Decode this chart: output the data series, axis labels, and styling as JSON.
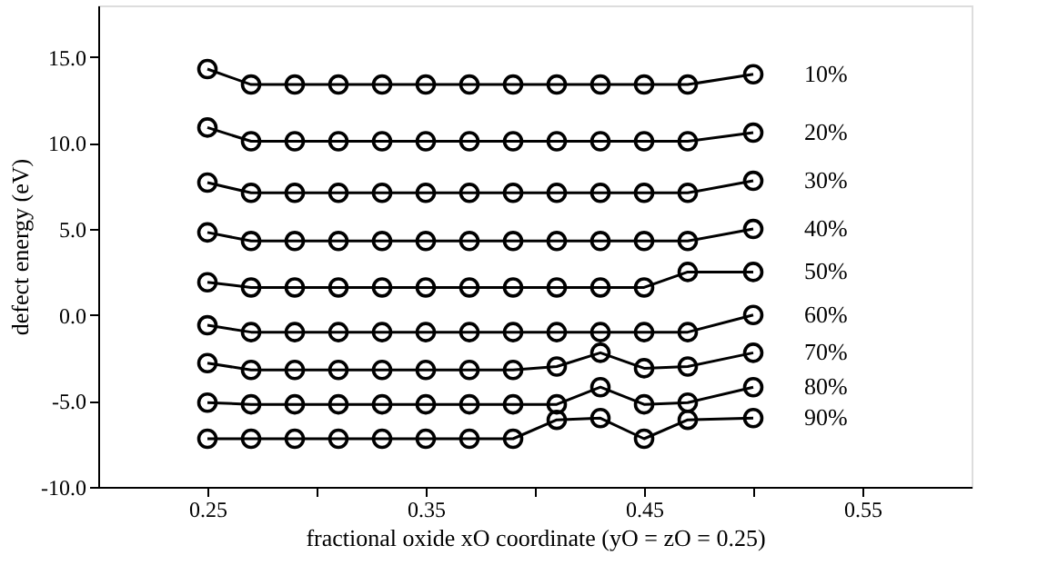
{
  "chart_data": {
    "type": "line",
    "xlabel": "fractional oxide xO coordinate (yO = zO = 0.25)",
    "ylabel": "defect energy (eV)",
    "x": [
      0.25,
      0.27,
      0.29,
      0.31,
      0.33,
      0.35,
      0.37,
      0.39,
      0.41,
      0.43,
      0.45,
      0.47,
      0.5
    ],
    "xlim": [
      0.2,
      0.6
    ],
    "ylim": [
      -10,
      18
    ],
    "xticks": [
      0.25,
      {
        "value": 0.3,
        "label": null
      },
      0.35,
      {
        "value": 0.4,
        "label": null
      },
      0.45,
      {
        "value": 0.5,
        "label": null
      },
      0.55
    ],
    "yticks": [
      {
        "value": -10,
        "label": "-10.0"
      },
      {
        "value": -5,
        "label": "-5.0"
      },
      {
        "value": 0,
        "label": "0.0"
      },
      {
        "value": 5,
        "label": "5.0"
      },
      {
        "value": 10,
        "label": "10.0"
      },
      {
        "value": 15,
        "label": "15.0"
      }
    ],
    "grid": false,
    "marker": "circle",
    "line_style": "solid",
    "legend": false,
    "series": [
      {
        "name": "10%",
        "color": "#000000",
        "values": [
          14.3,
          13.4,
          13.4,
          13.4,
          13.4,
          13.4,
          13.4,
          13.4,
          13.4,
          13.4,
          13.4,
          13.4,
          14.0
        ]
      },
      {
        "name": "20%",
        "color": "#000000",
        "values": [
          10.9,
          10.1,
          10.1,
          10.1,
          10.1,
          10.1,
          10.1,
          10.1,
          10.1,
          10.1,
          10.1,
          10.1,
          10.6
        ]
      },
      {
        "name": "30%",
        "color": "#000000",
        "values": [
          7.7,
          7.1,
          7.1,
          7.1,
          7.1,
          7.1,
          7.1,
          7.1,
          7.1,
          7.1,
          7.1,
          7.1,
          7.8
        ]
      },
      {
        "name": "40%",
        "color": "#000000",
        "values": [
          4.8,
          4.3,
          4.3,
          4.3,
          4.3,
          4.3,
          4.3,
          4.3,
          4.3,
          4.3,
          4.3,
          4.3,
          5.0
        ]
      },
      {
        "name": "50%",
        "color": "#000000",
        "values": [
          1.9,
          1.6,
          1.6,
          1.6,
          1.6,
          1.6,
          1.6,
          1.6,
          1.6,
          1.6,
          1.6,
          2.5,
          2.5
        ]
      },
      {
        "name": "60%",
        "color": "#000000",
        "values": [
          -0.6,
          -1.0,
          -1.0,
          -1.0,
          -1.0,
          -1.0,
          -1.0,
          -1.0,
          -1.0,
          -1.0,
          -1.0,
          -1.0,
          0.0
        ]
      },
      {
        "name": "70%",
        "color": "#000000",
        "values": [
          -2.8,
          -3.2,
          -3.2,
          -3.2,
          -3.2,
          -3.2,
          -3.2,
          -3.2,
          -3.0,
          -2.2,
          -3.1,
          -3.0,
          -2.2
        ]
      },
      {
        "name": "80%",
        "color": "#000000",
        "values": [
          -5.1,
          -5.2,
          -5.2,
          -5.2,
          -5.2,
          -5.2,
          -5.2,
          -5.2,
          -5.2,
          -4.2,
          -5.2,
          -5.1,
          -4.2
        ]
      },
      {
        "name": "90%",
        "color": "#000000",
        "values": [
          -7.2,
          -7.2,
          -7.2,
          -7.2,
          -7.2,
          -7.2,
          -7.2,
          -7.2,
          -6.1,
          -6.0,
          -7.2,
          -6.1,
          -6.0
        ]
      }
    ]
  }
}
